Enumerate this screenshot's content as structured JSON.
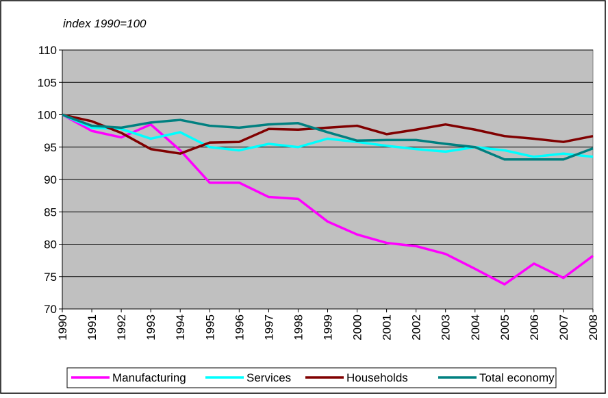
{
  "chart_data": {
    "type": "line",
    "title": "index 1990=100",
    "x": [
      1990,
      1991,
      1992,
      1993,
      1994,
      1995,
      1996,
      1997,
      1998,
      1999,
      2000,
      2001,
      2002,
      2003,
      2004,
      2005,
      2006,
      2007,
      2008
    ],
    "series": [
      {
        "name": "Manufacturing",
        "color": "#ff00ff",
        "values": [
          100,
          97.5,
          96.5,
          98.5,
          94.5,
          89.5,
          89.5,
          87.3,
          87,
          83.5,
          81.5,
          80.2,
          79.7,
          78.5,
          76.2,
          73.8,
          77,
          74.8,
          78.2
        ]
      },
      {
        "name": "Services",
        "color": "#00ffff",
        "values": [
          100,
          98,
          97.8,
          96.3,
          97.3,
          95,
          94.5,
          95.5,
          95,
          96.3,
          95.8,
          95.2,
          94.7,
          94.3,
          95,
          94.5,
          93.5,
          94,
          93.5
        ]
      },
      {
        "name": "Households",
        "color": "#800000",
        "values": [
          100,
          99,
          97.2,
          94.7,
          94,
          95.7,
          95.8,
          97.8,
          97.7,
          98,
          98.3,
          97,
          97.7,
          98.5,
          97.7,
          96.7,
          96.3,
          95.8,
          96.7
        ]
      },
      {
        "name": "Total economy",
        "color": "#008080",
        "values": [
          100,
          98.3,
          98,
          98.8,
          99.2,
          98.3,
          98,
          98.5,
          98.7,
          97.3,
          96,
          96.1,
          96.1,
          95.5,
          95,
          93.1,
          93.1,
          93.1,
          94.8
        ]
      }
    ],
    "xlim": [
      1990,
      2008
    ],
    "xticks": [
      1990,
      1991,
      1992,
      1993,
      1994,
      1995,
      1996,
      1997,
      1998,
      1999,
      2000,
      2001,
      2002,
      2003,
      2004,
      2005,
      2006,
      2007,
      2008
    ],
    "ylim": [
      70,
      110
    ],
    "yticks": [
      70,
      75,
      80,
      85,
      90,
      95,
      100,
      105,
      110
    ],
    "grid": true,
    "legend": "bottom"
  }
}
